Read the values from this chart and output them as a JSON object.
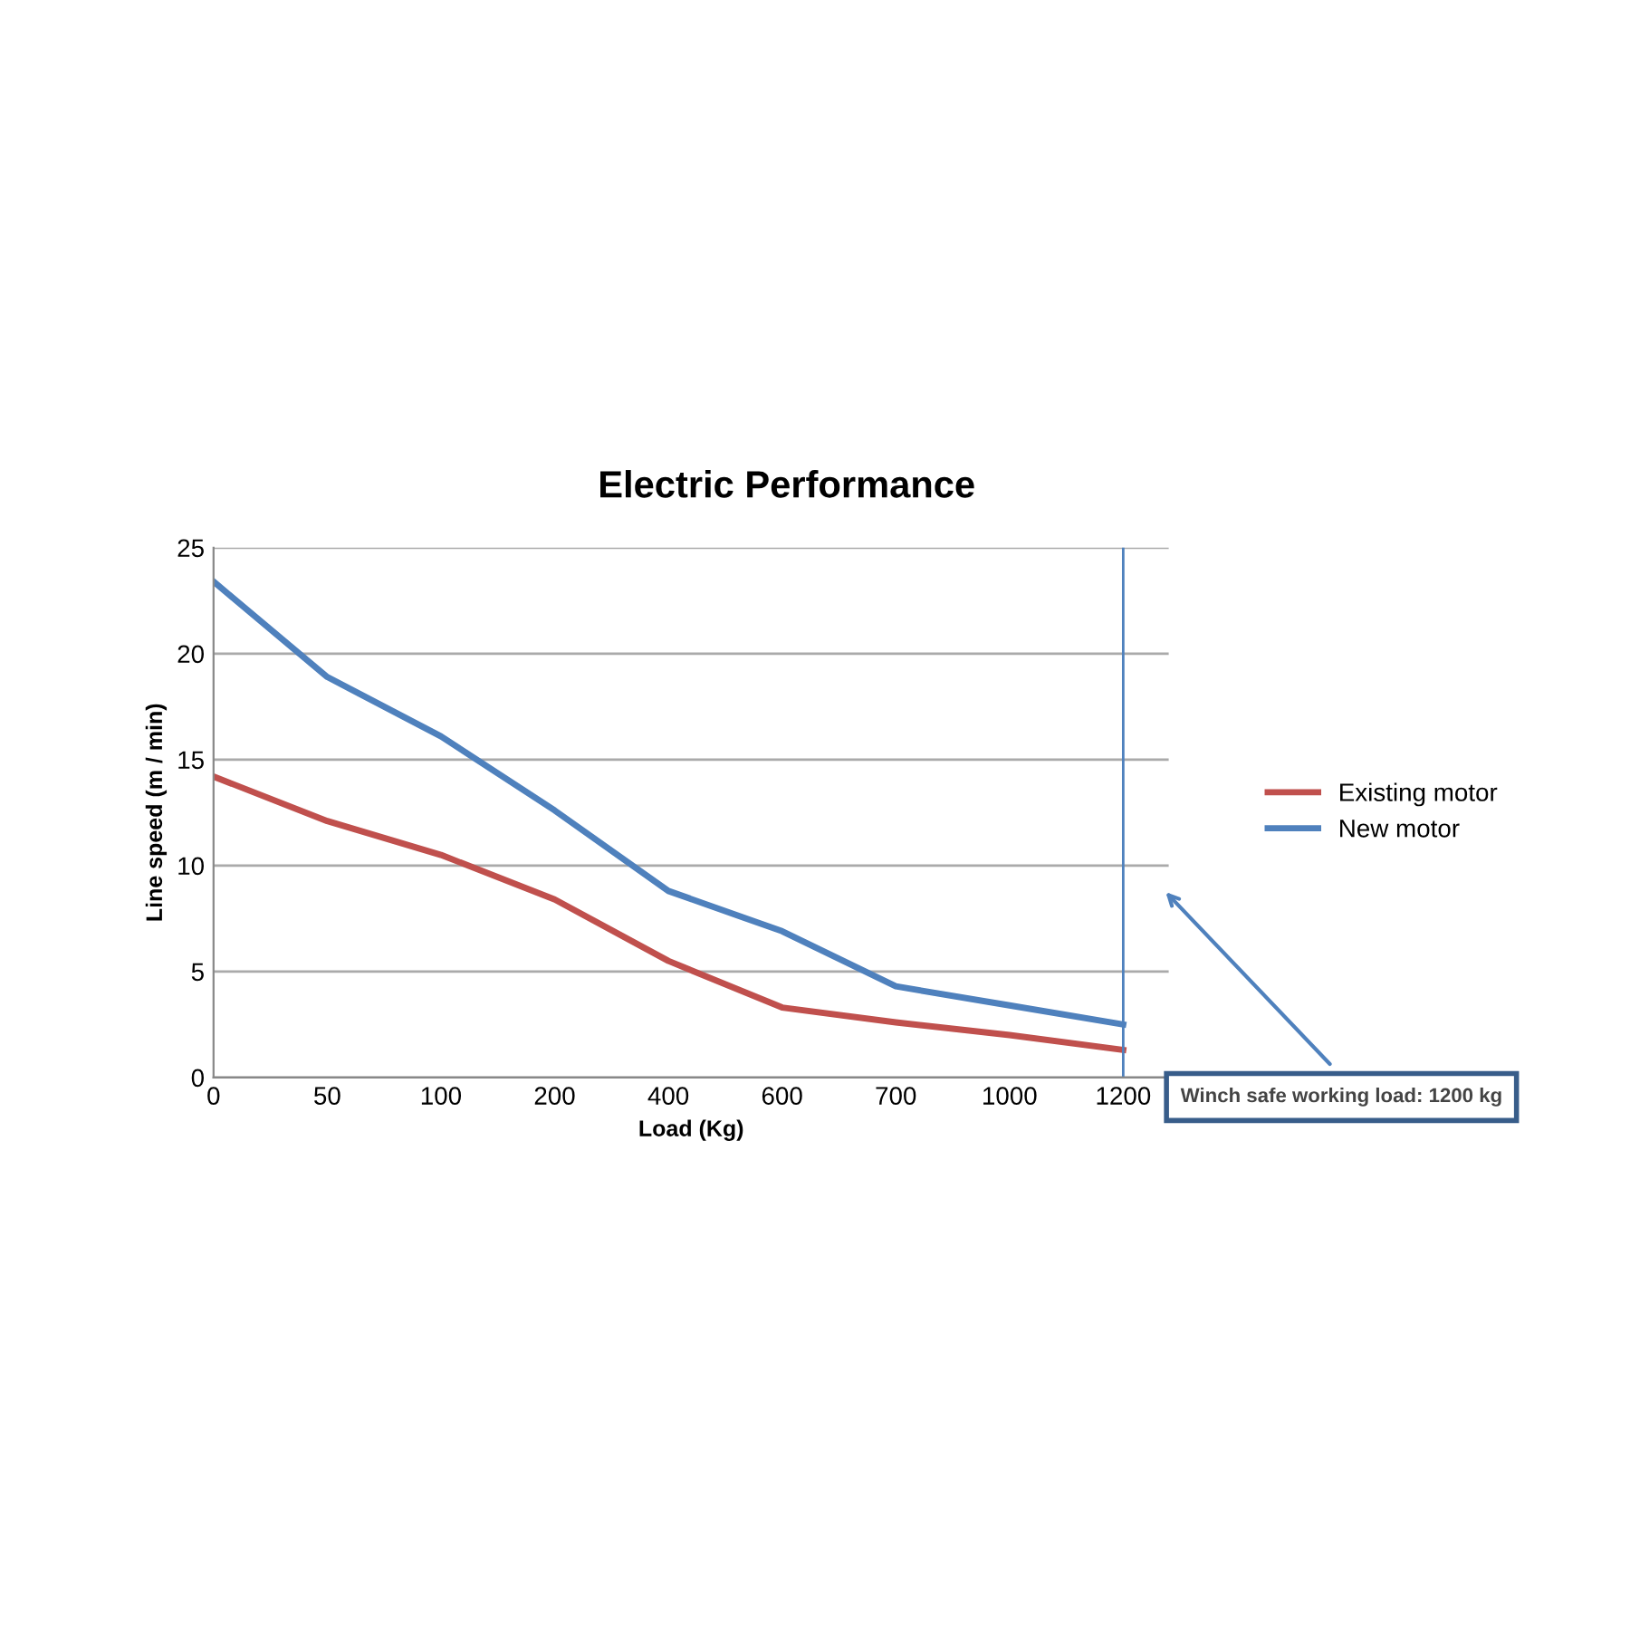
{
  "chart_data": {
    "type": "line",
    "title": "Electric Performance",
    "xlabel": "Load (Kg)",
    "ylabel": "Line speed (m / min)",
    "categories": [
      "0",
      "50",
      "100",
      "200",
      "400",
      "600",
      "700",
      "1000",
      "1200"
    ],
    "series": [
      {
        "name": "Existing motor",
        "color": "#c0504d",
        "values": [
          14.2,
          12.1,
          10.5,
          8.4,
          5.5,
          3.3,
          2.6,
          2.0,
          1.3
        ]
      },
      {
        "name": "New motor",
        "color": "#4f81bd",
        "values": [
          23.4,
          18.9,
          16.1,
          12.6,
          8.8,
          6.9,
          4.3,
          3.4,
          2.5
        ]
      }
    ],
    "ylim": [
      0,
      25
    ],
    "yticks": [
      0,
      5,
      10,
      15,
      20,
      25
    ],
    "grid": "y",
    "legend": "right",
    "marker": "none",
    "line_style": "solid",
    "ref_lines": [
      {
        "axis": "x",
        "value": "1200",
        "color": "#4f81bd"
      }
    ],
    "annotations": [
      "Winch safe working load: 1200 kg"
    ]
  }
}
